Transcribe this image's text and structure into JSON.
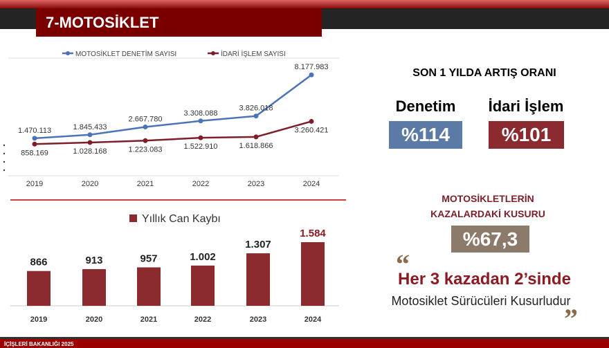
{
  "header": {
    "title": "7-MOTOSİKLET"
  },
  "footer": {
    "text": "İÇİŞLERİ BAKANLIĞI 2025"
  },
  "chart_data": [
    {
      "type": "line",
      "categories": [
        "2019",
        "2020",
        "2021",
        "2022",
        "2023",
        "2024"
      ],
      "series": [
        {
          "name": "MOTOSİKLET DENETİM SAYISI",
          "color": "#4a73b8",
          "values": [
            1470113,
            1845433,
            2667780,
            3308088,
            3826018,
            8177983
          ],
          "labels": [
            "1.470.113",
            "1.845.433",
            "2.667.780",
            "3.308.088",
            "3.826.018",
            "8.177.983"
          ]
        },
        {
          "name": "İDARİ İŞLEM SAYISI",
          "color": "#7d1f2a",
          "values": [
            858169,
            1028168,
            1223083,
            1522910,
            1618866,
            3260421
          ],
          "labels": [
            "858.169",
            "1.028.168",
            "1.223.083",
            "1.522.910",
            "1.618.866",
            "3.260.421"
          ]
        }
      ],
      "ylim": [
        0,
        9000000
      ],
      "legend": "top",
      "grid": false
    },
    {
      "type": "bar",
      "categories": [
        "2019",
        "2020",
        "2021",
        "2022",
        "2023",
        "2024"
      ],
      "series": [
        {
          "name": "Yıllık Can Kaybı",
          "color": "#8b2a2f",
          "values": [
            866,
            913,
            957,
            1002,
            1307,
            1584
          ],
          "labels": [
            "866",
            "913",
            "957",
            "1.002",
            "1.307",
            "1.584"
          ]
        }
      ],
      "ylim": [
        0,
        1800
      ],
      "legend": "top",
      "grid": false
    }
  ],
  "stats": {
    "increase_title": "SON 1 YILDA ARTIŞ ORANI",
    "denetim_label": "Denetim",
    "denetim_value": "%114",
    "denetim_color": "#5b7aa5",
    "idari_label": "İdari İşlem",
    "idari_value": "%101",
    "idari_color": "#8b2a2f",
    "fault_title_1": "MOTOSİKLETLERİN",
    "fault_title_2": "KAZALARDAKİ KUSURU",
    "fault_value": "%67,3",
    "fault_color": "#8c7a6a",
    "quote_open": "“",
    "quote_main": "Her 3 kazadan 2’sinde",
    "quote_sub": "Motosiklet Sürücüleri Kusurludur",
    "quote_close": "”"
  }
}
